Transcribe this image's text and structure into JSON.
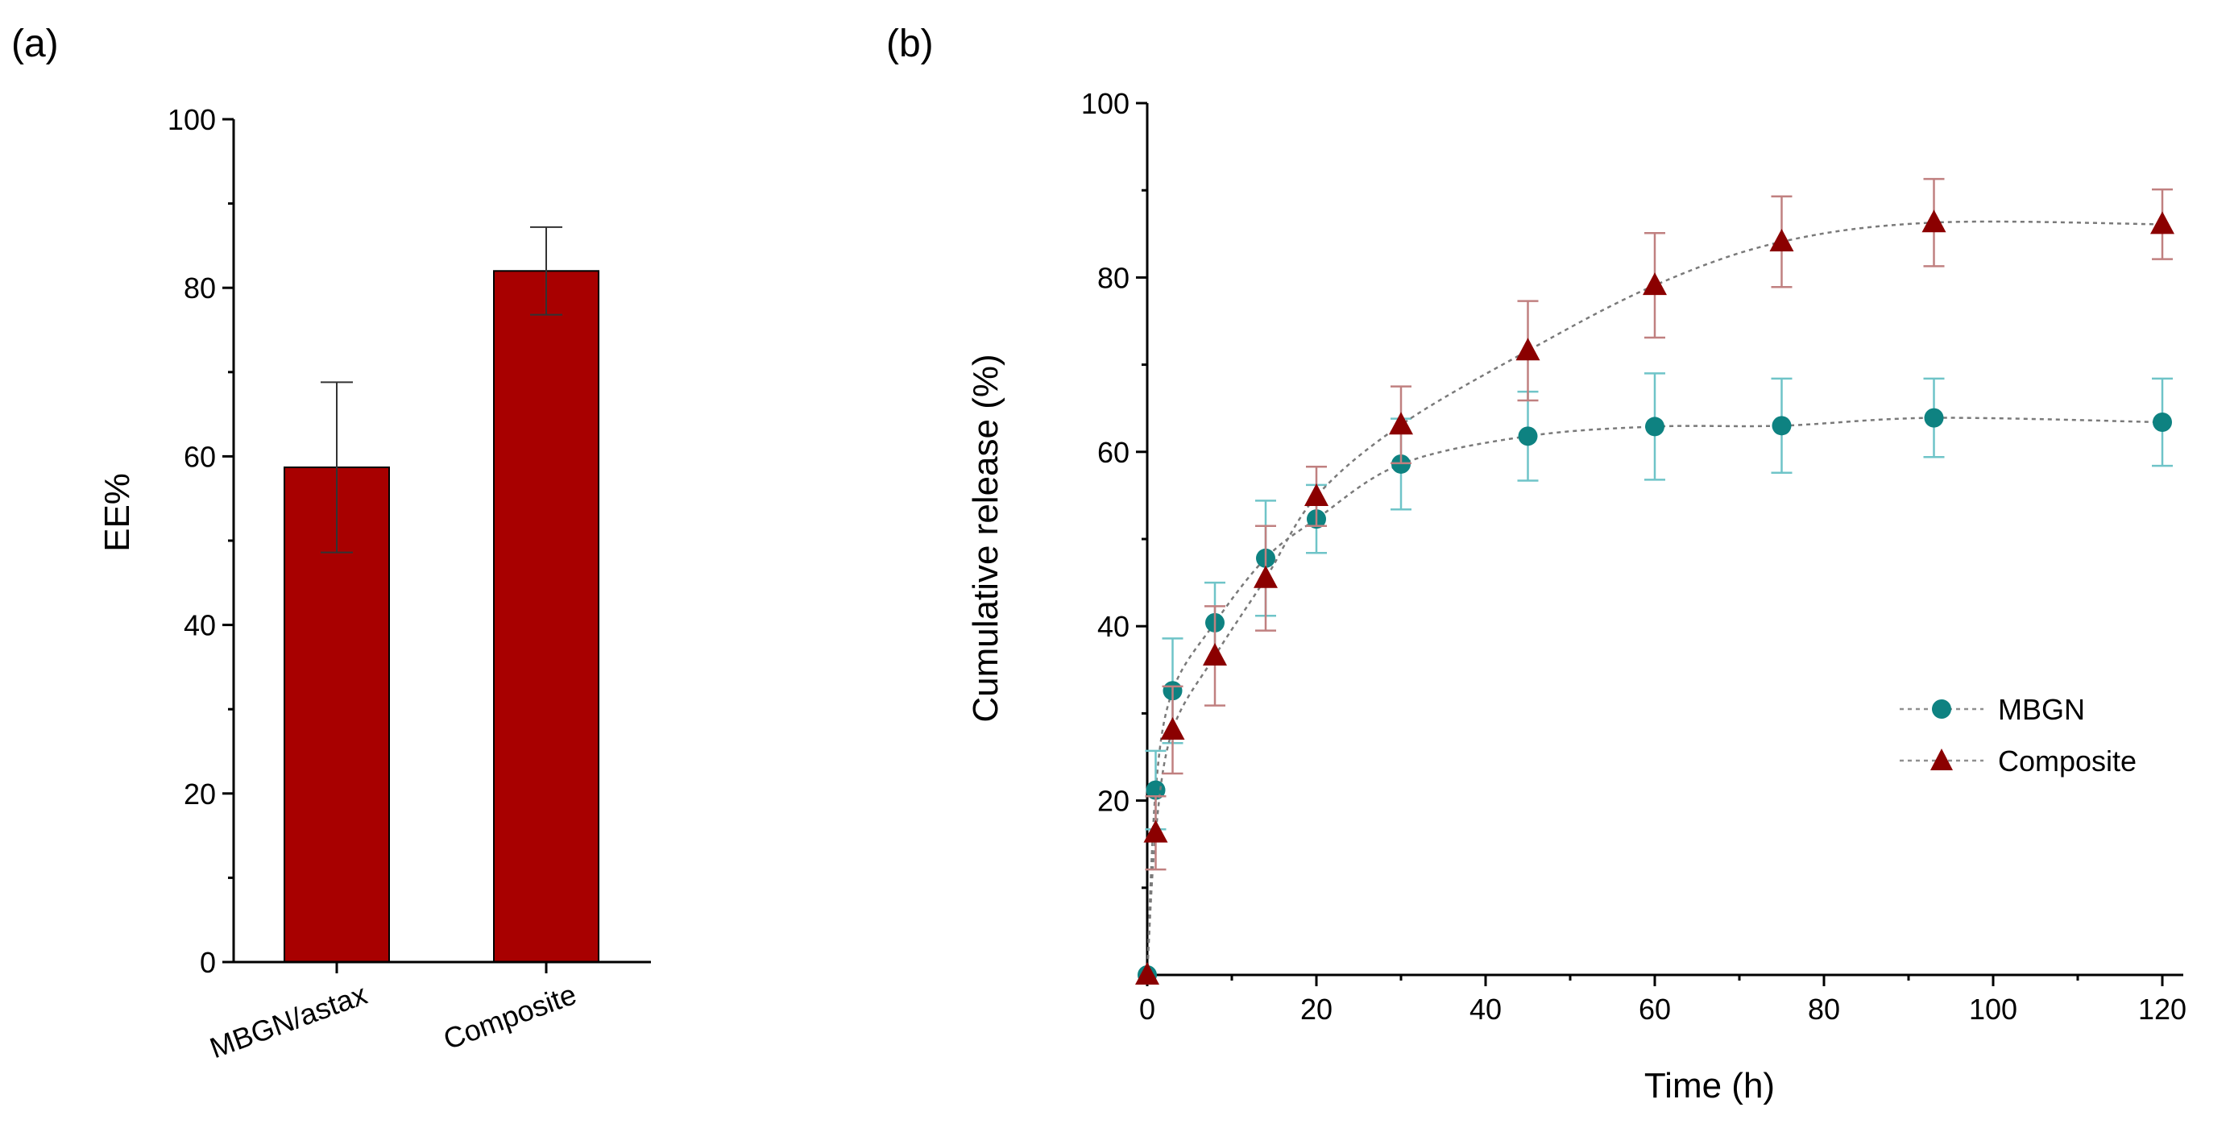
{
  "chart_data": [
    {
      "panel_label": "(a)",
      "type": "bar",
      "title": "",
      "xlabel": "",
      "ylabel": "EE%",
      "ylim": [
        0,
        100
      ],
      "yticks": [
        0,
        20,
        40,
        60,
        80,
        100
      ],
      "categories": [
        "MBGN/astax",
        "Composite"
      ],
      "values": [
        58.7,
        82.0
      ],
      "errors": [
        10.1,
        5.2
      ],
      "bar_color": "#a80000"
    },
    {
      "panel_label": "(b)",
      "type": "line",
      "title": "",
      "xlabel": "Time (h)",
      "ylabel": "Cumulative release (%)",
      "xlim": [
        0,
        120
      ],
      "ylim": [
        0,
        100
      ],
      "xticks": [
        0,
        20,
        40,
        60,
        80,
        100,
        120
      ],
      "yticks": [
        20,
        40,
        60,
        80,
        100
      ],
      "legend_position": "middle-right",
      "series": [
        {
          "name": "MBGN",
          "marker": "circle",
          "color": "#0e8281",
          "error_color": "#6fc4c8",
          "x": [
            0,
            1,
            3,
            8,
            14,
            20,
            30,
            45,
            60,
            75,
            93,
            120
          ],
          "y": [
            0,
            21.2,
            32.6,
            40.4,
            47.8,
            52.3,
            58.6,
            61.8,
            62.9,
            63.0,
            63.9,
            63.4
          ],
          "err": [
            0,
            4.5,
            6.0,
            4.6,
            6.6,
            3.9,
            5.2,
            5.1,
            6.1,
            5.4,
            4.5,
            5.0
          ]
        },
        {
          "name": "Composite",
          "marker": "triangle",
          "color": "#8b0000",
          "error_color": "#c08080",
          "x": [
            0,
            1,
            3,
            8,
            14,
            20,
            30,
            45,
            60,
            75,
            93,
            120
          ],
          "y": [
            0,
            16.3,
            28.1,
            36.6,
            45.5,
            54.9,
            63.1,
            71.6,
            79.1,
            84.1,
            86.3,
            86.1
          ],
          "err": [
            0,
            4.2,
            5.0,
            5.7,
            6.0,
            3.4,
            4.4,
            5.7,
            6.0,
            5.2,
            5.0,
            4.0
          ]
        }
      ]
    }
  ]
}
